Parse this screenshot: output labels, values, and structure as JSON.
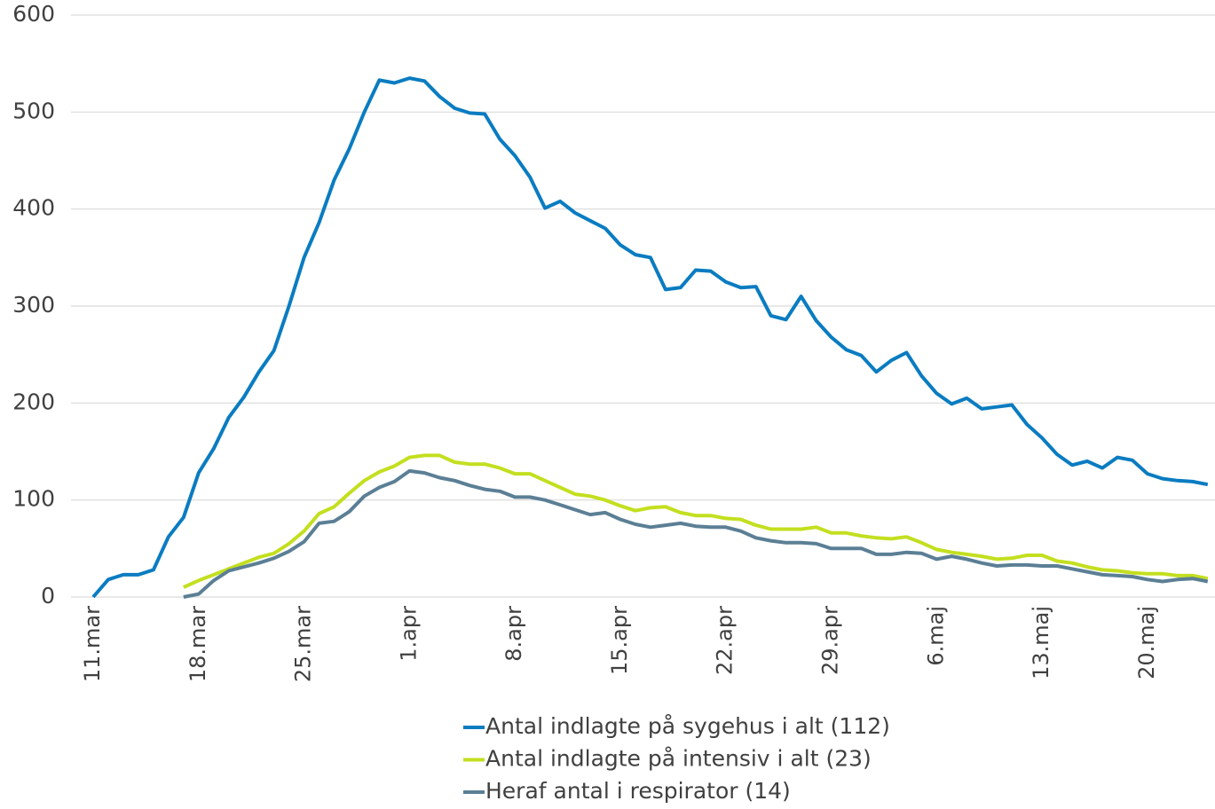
{
  "chart_data": {
    "type": "line",
    "categories": [
      "11.mar",
      null,
      null,
      null,
      null,
      null,
      null,
      "18.mar",
      null,
      null,
      null,
      null,
      null,
      null,
      "25.mar",
      null,
      null,
      null,
      null,
      null,
      null,
      "1.apr",
      null,
      null,
      null,
      null,
      null,
      null,
      "8.apr",
      null,
      null,
      null,
      null,
      null,
      null,
      "15.apr",
      null,
      null,
      null,
      null,
      null,
      null,
      "22.apr",
      null,
      null,
      null,
      null,
      null,
      null,
      "29.apr",
      null,
      null,
      null,
      null,
      null,
      null,
      "6.maj",
      null,
      null,
      null,
      null,
      null,
      null,
      "13.maj",
      null,
      null,
      null,
      null,
      null,
      null,
      "20.maj",
      null,
      null,
      null,
      null
    ],
    "series": [
      {
        "name": "Antal indlagte på sygehus i alt (112)",
        "color": "#0a7cc1",
        "values": [
          0,
          18,
          23,
          23,
          28,
          62,
          82,
          128,
          153,
          185,
          206,
          232,
          254,
          300,
          350,
          386,
          430,
          462,
          500,
          533,
          530,
          535,
          532,
          516,
          504,
          499,
          498,
          472,
          455,
          433,
          401,
          408,
          396,
          388,
          380,
          363,
          353,
          350,
          317,
          319,
          337,
          336,
          325,
          319,
          320,
          290,
          286,
          310,
          285,
          268,
          255,
          249,
          232,
          244,
          252,
          228,
          210,
          199,
          205,
          194,
          196,
          198,
          178,
          164,
          147,
          136,
          140,
          133,
          144,
          141,
          127,
          122,
          120,
          119,
          116
        ]
      },
      {
        "name": "Antal indlagte på intensiv i alt (23)",
        "color": "#c3df1f",
        "values": [
          null,
          null,
          null,
          null,
          null,
          null,
          10,
          17,
          23,
          29,
          35,
          41,
          45,
          55,
          68,
          86,
          93,
          107,
          120,
          129,
          135,
          144,
          146,
          146,
          139,
          137,
          137,
          133,
          127,
          127,
          120,
          113,
          106,
          104,
          100,
          94,
          89,
          92,
          93,
          87,
          84,
          84,
          81,
          80,
          74,
          70,
          70,
          70,
          72,
          66,
          66,
          63,
          61,
          60,
          62,
          56,
          49,
          46,
          44,
          42,
          39,
          40,
          43,
          43,
          37,
          35,
          31,
          28,
          27,
          25,
          24,
          24,
          22,
          22,
          19
        ]
      },
      {
        "name": "Heraf antal i respirator (14)",
        "color": "#5b7f95",
        "values": [
          null,
          null,
          null,
          null,
          null,
          null,
          0,
          3,
          17,
          27,
          31,
          35,
          40,
          47,
          57,
          76,
          78,
          88,
          104,
          113,
          119,
          130,
          128,
          123,
          120,
          115,
          111,
          109,
          103,
          103,
          100,
          95,
          90,
          85,
          87,
          80,
          75,
          72,
          74,
          76,
          73,
          72,
          72,
          68,
          61,
          58,
          56,
          56,
          55,
          50,
          50,
          50,
          44,
          44,
          46,
          45,
          39,
          42,
          39,
          35,
          32,
          33,
          33,
          32,
          32,
          29,
          26,
          23,
          22,
          21,
          18,
          16,
          18,
          19,
          16
        ]
      }
    ],
    "ylim": [
      0,
      600
    ],
    "yticks": [
      0,
      100,
      200,
      300,
      400,
      500,
      600
    ],
    "grid": true
  }
}
